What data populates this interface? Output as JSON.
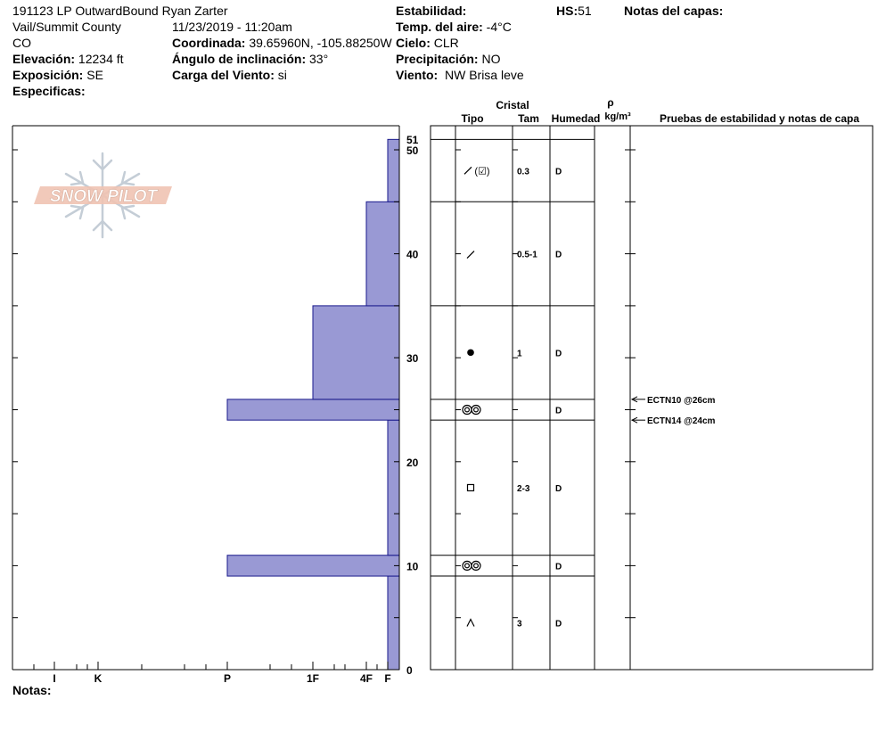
{
  "header": {
    "title": "191123 LP OutwardBound Ryan Zarter",
    "location": "Vail/Summit County",
    "state": "CO",
    "datetime": "11/23/2019 - 11:20am",
    "elevation_label": "Elevación:",
    "elevation_value": "12234 ft",
    "coord_label": "Coordinada:",
    "coord_value": "39.65960N, -105.88250W",
    "aspect_label": "Exposición:",
    "aspect_value": "SE",
    "slope_label": "Ángulo de inclinación:",
    "slope_value": "33°",
    "specifics_label": "Especificas:",
    "wind_load_label": "Carga del Viento:",
    "wind_load_value": "si",
    "stability_label": "Estabilidad:",
    "air_temp_label": "Temp. del aire:",
    "air_temp_value": "-4°C",
    "sky_label": "Cielo:",
    "sky_value": "CLR",
    "precip_label": "Precipitación:",
    "precip_value": "NO",
    "wind_label": "Viento:",
    "wind_value": "NW Brisa leve",
    "hs_label": "HS:",
    "hs_value": "51",
    "layer_notes_label": "Notas del capas:",
    "notes_label": "Notas:"
  },
  "logo": {
    "text": "SNOW PILOT"
  },
  "columns": {
    "crystal": "Cristal",
    "type": "Tipo",
    "size": "Tam",
    "moisture": "Humedad",
    "density_symbol": "ρ",
    "density_unit": "kg/m³",
    "tests_header": "Pruebas de estabilidad y notas de capa"
  },
  "chart_data": {
    "type": "bar",
    "orientation": "horizontal",
    "y_axis": {
      "min": 0,
      "max": 51,
      "ticks": [
        0,
        10,
        20,
        30,
        40,
        50
      ],
      "top_label": "51"
    },
    "x_axis": {
      "categories": [
        "F",
        "4F",
        "1F",
        "P",
        "K",
        "I"
      ],
      "labels": [
        "I",
        "K",
        "P",
        "1F",
        "4F",
        "F"
      ]
    },
    "layers": [
      {
        "bottom": 0,
        "top": 9,
        "hardness": "F"
      },
      {
        "bottom": 9,
        "top": 11,
        "hardness": "P"
      },
      {
        "bottom": 11,
        "top": 24,
        "hardness": "F"
      },
      {
        "bottom": 24,
        "top": 26,
        "hardness": "P"
      },
      {
        "bottom": 26,
        "top": 35,
        "hardness": "1F"
      },
      {
        "bottom": 35,
        "top": 45,
        "hardness": "4F"
      },
      {
        "bottom": 45,
        "top": 51,
        "hardness": "F"
      }
    ],
    "bar_color": "#9999d4",
    "grid": false
  },
  "crystal_rows": [
    {
      "bottom": 45,
      "top": 51,
      "type_icon": "precip-particles-icon",
      "size": "0.3",
      "moisture": "D"
    },
    {
      "bottom": 35,
      "top": 45,
      "type_icon": "decomposing-icon",
      "size": "0.5-1",
      "moisture": "D"
    },
    {
      "bottom": 26,
      "top": 35,
      "type_icon": "rounded-grains-icon",
      "size": "1",
      "moisture": "D"
    },
    {
      "bottom": 24,
      "top": 26,
      "type_icon": "surface-hoar-icon",
      "size": "",
      "moisture": "D"
    },
    {
      "bottom": 11,
      "top": 24,
      "type_icon": "faceted-crystals-icon",
      "size": "2-3",
      "moisture": "D"
    },
    {
      "bottom": 9,
      "top": 11,
      "type_icon": "surface-hoar-icon",
      "size": "",
      "moisture": "D"
    },
    {
      "bottom": 0,
      "top": 9,
      "type_icon": "depth-hoar-icon",
      "size": "3",
      "moisture": "D"
    }
  ],
  "tests": [
    {
      "depth": 26,
      "label": "ECTN10 @26cm"
    },
    {
      "depth": 24,
      "label": "ECTN14 @24cm"
    }
  ]
}
